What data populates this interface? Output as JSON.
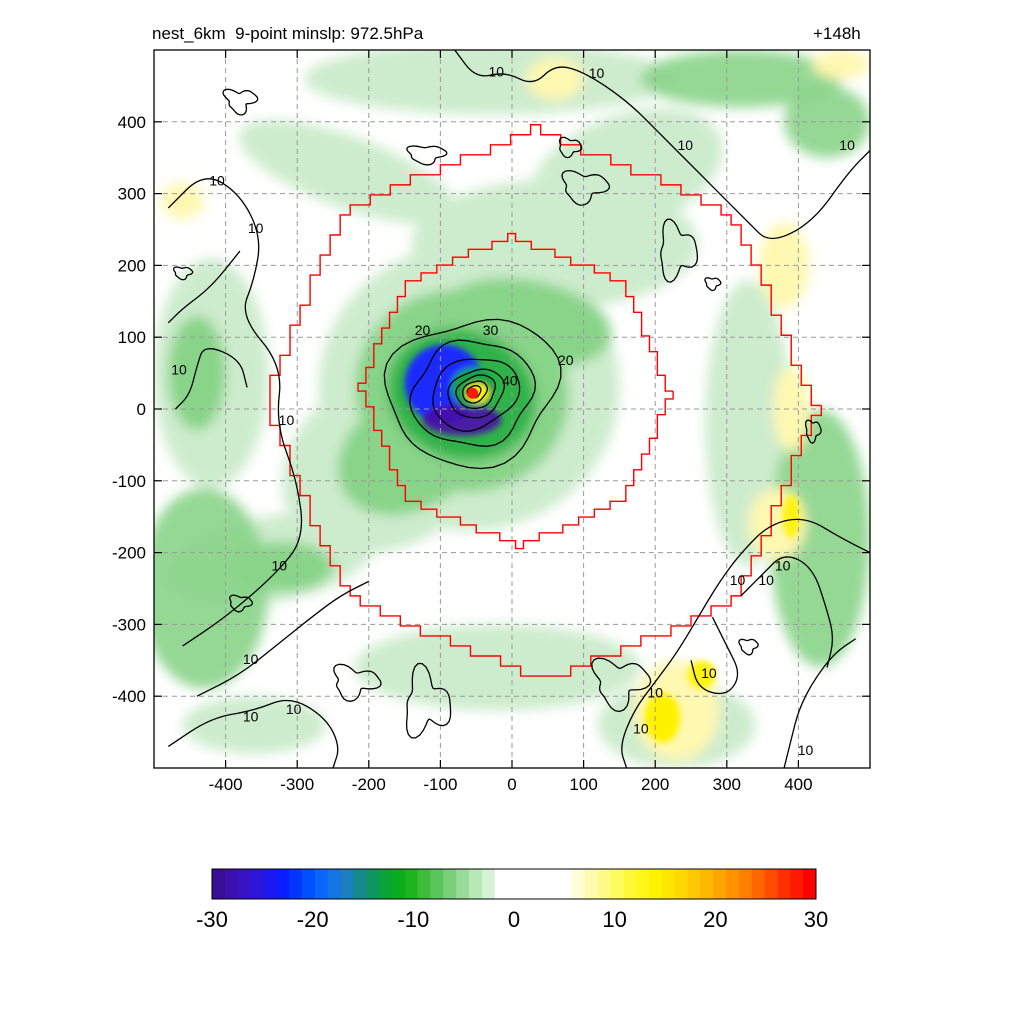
{
  "header": {
    "title": "nest_6km  9-point minslp: 972.5hPa",
    "time_label": "+148h"
  },
  "chart_data": {
    "type": "heatmap",
    "xlim": [
      -500,
      500
    ],
    "ylim": [
      -500,
      500
    ],
    "x_ticks": [
      -400,
      -300,
      -200,
      -100,
      0,
      100,
      200,
      300,
      400
    ],
    "y_ticks": [
      400,
      300,
      200,
      100,
      0,
      -100,
      -200,
      -300,
      -400
    ],
    "x_tick_labels": [
      "-400",
      "-300",
      "-200",
      "-100",
      "0",
      "100",
      "200",
      "300",
      "400"
    ],
    "y_tick_labels": [
      "400",
      "300",
      "200",
      "100",
      "0",
      "-100",
      "-200",
      "-300",
      "-400"
    ],
    "grid": true,
    "storm_center": [
      -55,
      22
    ],
    "min_slp_hPa": 972.5,
    "contour_levels": [
      10,
      20,
      30,
      40
    ],
    "contour_labels": [
      {
        "text": "10",
        "x": -412,
        "y": 318
      },
      {
        "text": "10",
        "x": -358,
        "y": 252
      },
      {
        "text": "10",
        "x": -465,
        "y": 55
      },
      {
        "text": "10",
        "x": -315,
        "y": -15
      },
      {
        "text": "10",
        "x": -325,
        "y": -218
      },
      {
        "text": "10",
        "x": -365,
        "y": -348
      },
      {
        "text": "10",
        "x": -365,
        "y": -428
      },
      {
        "text": "10",
        "x": -305,
        "y": -418
      },
      {
        "text": "10",
        "x": -22,
        "y": 470
      },
      {
        "text": "10",
        "x": 118,
        "y": 468
      },
      {
        "text": "10",
        "x": 242,
        "y": 368
      },
      {
        "text": "10",
        "x": 468,
        "y": 368
      },
      {
        "text": "10",
        "x": 315,
        "y": -238
      },
      {
        "text": "10",
        "x": 355,
        "y": -238
      },
      {
        "text": "10",
        "x": 378,
        "y": -218
      },
      {
        "text": "10",
        "x": 275,
        "y": -368
      },
      {
        "text": "10",
        "x": 200,
        "y": -395
      },
      {
        "text": "10",
        "x": 180,
        "y": -445
      },
      {
        "text": "10",
        "x": 410,
        "y": -475
      },
      {
        "text": "20",
        "x": -125,
        "y": 110
      },
      {
        "text": "20",
        "x": 75,
        "y": 68
      },
      {
        "text": "30",
        "x": -30,
        "y": 110
      },
      {
        "text": "40",
        "x": -3,
        "y": 40
      }
    ],
    "colorbar": {
      "min": -30,
      "max": 30,
      "tick_values": [
        -30,
        -20,
        -10,
        0,
        10,
        20,
        30
      ],
      "tick_labels": [
        "-30",
        "-20",
        "-10",
        "0",
        "10",
        "20",
        "30"
      ],
      "colors": [
        "#3a0e96",
        "#3b10ac",
        "#3813c4",
        "#2c16da",
        "#1d18ef",
        "#0a1dff",
        "#0036ff",
        "#0050ff",
        "#0a66ff",
        "#1476e4",
        "#1a7ec0",
        "#148a8a",
        "#0f9660",
        "#0aa33a",
        "#0aad1f",
        "#1eb41e",
        "#3cbc3a",
        "#5ac55a",
        "#7ad07a",
        "#99dc99",
        "#b8e8b8",
        "#d4f2d4",
        "#ffffff",
        "#ffffff",
        "#ffffff",
        "#ffffff",
        "#ffffff",
        "#ffffff",
        "#fffdd8",
        "#fffcb0",
        "#fffb88",
        "#fffb5e",
        "#fff93a",
        "#fff81a",
        "#fff200",
        "#ffe600",
        "#ffd800",
        "#ffc800",
        "#ffb800",
        "#ffa600",
        "#ff9400",
        "#ff7f00",
        "#ff6600",
        "#ff4c00",
        "#ff3000",
        "#ff1a00",
        "#ff0000"
      ]
    },
    "colors": {
      "ring": "#ff0000",
      "contour": "#000000",
      "grid": "#9a9a9a",
      "green_light": "#cdeccd",
      "green_mid": "#88d488",
      "green_dark": "#2fb24a",
      "blue": "#1d2cff",
      "purple": "#4a0eaa",
      "yellow_light": "#fff8b0",
      "yellow": "#fff200"
    }
  }
}
